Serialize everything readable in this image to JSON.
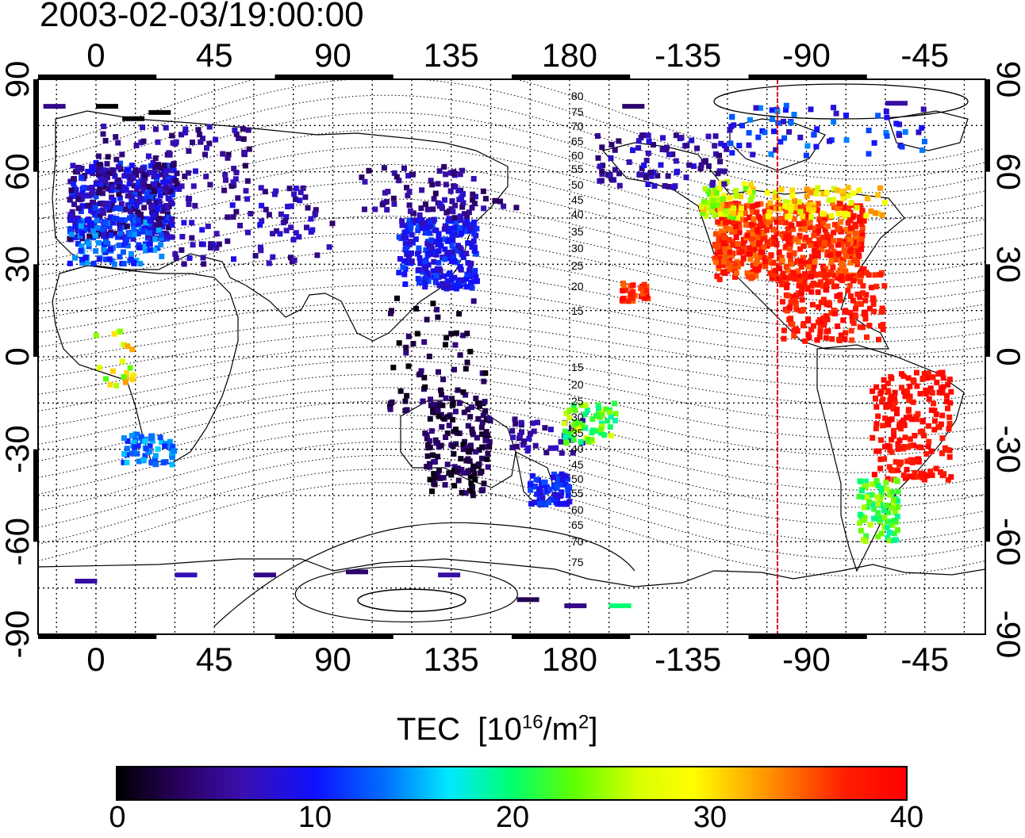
{
  "timestamp": "2003-02-03/19:00:00",
  "map": {
    "x_ticks": [
      "0",
      "45",
      "90",
      "135",
      "180",
      "-135",
      "-90",
      "-45"
    ],
    "y_ticks_left": [
      "90",
      "60",
      "30",
      "0",
      "-30",
      "-60",
      "-90"
    ],
    "y_ticks_right": [
      "90",
      "60",
      "30",
      "0",
      "-30",
      "-60",
      "-90"
    ],
    "contour_labels_north": [
      "80",
      "75",
      "70",
      "65",
      "60",
      "55",
      "50",
      "45",
      "40",
      "35",
      "30",
      "25",
      "20",
      "15"
    ],
    "contour_labels_south": [
      "15",
      "20",
      "25",
      "30",
      "35",
      "40",
      "45",
      "50",
      "55",
      "60",
      "65",
      "70",
      "75"
    ],
    "current_longitude_line_color": "#e00000"
  },
  "colorbar": {
    "title": "TEC",
    "unit_prefix": "[10",
    "unit_exp1": "16",
    "unit_mid": "/m",
    "unit_exp2": "2",
    "unit_suffix": "]",
    "ticks": [
      "0",
      "10",
      "20",
      "30",
      "40"
    ],
    "range": [
      0,
      40
    ],
    "colormap": [
      "#000000",
      "#3a10b0",
      "#1010ff",
      "#00e8ff",
      "#00ff70",
      "#ffff00",
      "#ff0000"
    ]
  }
}
